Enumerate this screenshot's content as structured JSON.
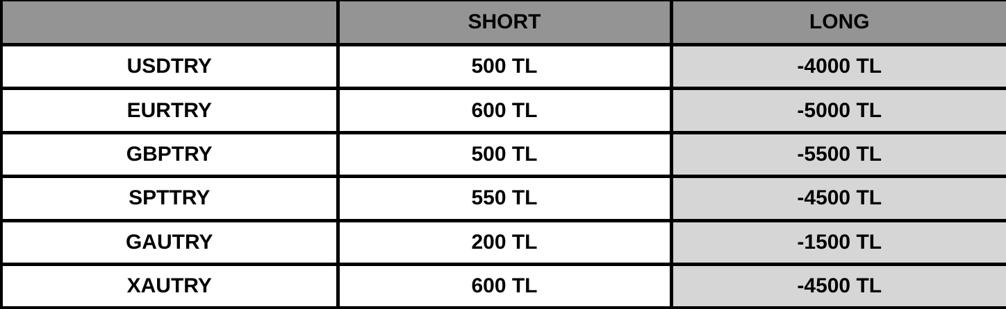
{
  "colors": {
    "header_bg": "#949494",
    "long_column_bg": "#d6d6d6",
    "row_bg": "#ffffff",
    "border": "#000000",
    "text": "#000000"
  },
  "table": {
    "columns": [
      {
        "label": ""
      },
      {
        "label": "SHORT"
      },
      {
        "label": "LONG"
      }
    ],
    "rows": [
      {
        "symbol": "USDTRY",
        "short": "500 TL",
        "long": "-4000 TL"
      },
      {
        "symbol": "EURTRY",
        "short": "600 TL",
        "long": "-5000 TL"
      },
      {
        "symbol": "GBPTRY",
        "short": "500 TL",
        "long": "-5500 TL"
      },
      {
        "symbol": "SPTTRY",
        "short": "550 TL",
        "long": "-4500 TL"
      },
      {
        "symbol": "GAUTRY",
        "short": "200 TL",
        "long": "-1500 TL"
      },
      {
        "symbol": "XAUTRY",
        "short": "600 TL",
        "long": "-4500 TL"
      }
    ]
  },
  "chart_data": {
    "type": "table",
    "title": "",
    "columns": [
      "",
      "SHORT",
      "LONG"
    ],
    "categories": [
      "USDTRY",
      "EURTRY",
      "GBPTRY",
      "SPTTRY",
      "GAUTRY",
      "XAUTRY"
    ],
    "series": [
      {
        "name": "SHORT",
        "unit": "TL",
        "values": [
          500,
          600,
          500,
          550,
          200,
          600
        ]
      },
      {
        "name": "LONG",
        "unit": "TL",
        "values": [
          -4000,
          -5000,
          -5500,
          -4500,
          -1500,
          -4500
        ]
      }
    ],
    "rows": [
      [
        "USDTRY",
        "500 TL",
        "-4000 TL"
      ],
      [
        "EURTRY",
        "600 TL",
        "-5000 TL"
      ],
      [
        "GBPTRY",
        "500 TL",
        "-5500 TL"
      ],
      [
        "SPTTRY",
        "550 TL",
        "-4500 TL"
      ],
      [
        "GAUTRY",
        "200 TL",
        "-1500 TL"
      ],
      [
        "XAUTRY",
        "600 TL",
        "-4500 TL"
      ]
    ]
  }
}
